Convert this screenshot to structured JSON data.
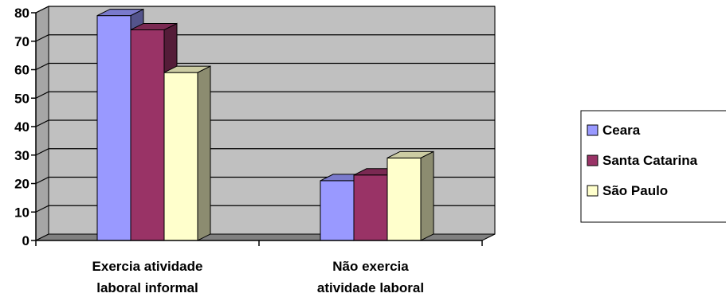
{
  "chart_data": {
    "type": "bar",
    "style": "3d-clustered-column",
    "categories": [
      [
        "Exercia atividade",
        "laboral informal"
      ],
      [
        "Não exercia",
        "atividade laboral"
      ]
    ],
    "series": [
      {
        "name": "Ceara",
        "values": [
          79,
          21
        ],
        "color": "#9999ff"
      },
      {
        "name": "Santa Catarina",
        "values": [
          74,
          23
        ],
        "color": "#993366"
      },
      {
        "name": "São Paulo",
        "values": [
          59,
          29
        ],
        "color": "#ffffcc"
      }
    ],
    "ylim": [
      0,
      80
    ],
    "yticks": [
      "0",
      "10",
      "20",
      "30",
      "40",
      "50",
      "60",
      "70",
      "80"
    ],
    "grid": true,
    "legend_position": "right",
    "colors": {
      "wall": "#c0c0c0",
      "floor": "#808080",
      "gridline": "#000000"
    }
  }
}
